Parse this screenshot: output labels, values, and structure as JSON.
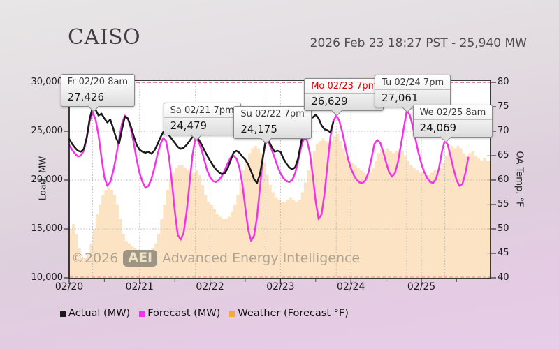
{
  "header": {
    "title": "CAISO",
    "subtitle": "2026 Feb 23 18:27 PST - 25,940 MW"
  },
  "watermark": {
    "copyright": "©2026",
    "badge": "AEI",
    "name": "Advanced Energy Intelligence"
  },
  "legend": [
    {
      "label": "Actual (MW)",
      "color": "#1a1a1a"
    },
    {
      "label": "Forecast (MW)",
      "color": "#f434e4"
    },
    {
      "label": "Weather (Forecast °F)",
      "color": "#f6a83b"
    }
  ],
  "axes": {
    "y_left": {
      "title": "Load, MW",
      "ticks": [
        "30,000",
        "25,000",
        "20,000",
        "15,000",
        "10,000"
      ],
      "min": 10000,
      "max": 30000
    },
    "y_right": {
      "title": "OA Temp, °F",
      "ticks": [
        "80",
        "75",
        "70",
        "65",
        "60",
        "55",
        "50",
        "45",
        "40"
      ],
      "min": 40,
      "max": 80
    },
    "x": {
      "ticks": [
        "02/20",
        "02/21",
        "02/22",
        "02/23",
        "02/24",
        "02/25"
      ]
    }
  },
  "callouts": [
    {
      "label": "Fr 02/20 8am",
      "value": "27,426",
      "hour": 8,
      "mw": 27426,
      "highlight": false
    },
    {
      "label": "Sa 02/21 7pm",
      "value": "24,479",
      "hour": 43,
      "mw": 24479,
      "highlight": false
    },
    {
      "label": "Su 02/22 7pm",
      "value": "24,175",
      "hour": 67,
      "mw": 24175,
      "highlight": false
    },
    {
      "label": "Mo 02/23 7pm",
      "value": "26,629",
      "hour": 91,
      "mw": 26629,
      "highlight": true
    },
    {
      "label": "Tu 02/24 7pm",
      "value": "27,061",
      "hour": 115,
      "mw": 27061,
      "highlight": false
    },
    {
      "label": "We 02/25 8am",
      "value": "24,069",
      "hour": 128,
      "mw": 24069,
      "highlight": false
    }
  ],
  "chart_data": {
    "type": "line",
    "title": "CAISO load: actual vs forecast with weather",
    "xlabel": "",
    "ylabel_left": "Load, MW",
    "ylabel_right": "OA Temp, °F",
    "x_unit": "hours since 02/20 00:00",
    "x_tick_days": [
      "02/20",
      "02/21",
      "02/22",
      "02/23",
      "02/24",
      "02/25"
    ],
    "ylim_left": [
      10000,
      30000
    ],
    "ylim_right": [
      40,
      80
    ],
    "grid": true,
    "legend_position": "bottom",
    "series": [
      {
        "name": "Actual (MW)",
        "axis": "left",
        "color": "#1a1a1a",
        "render": "line",
        "start_hour": 0,
        "values": [
          24200,
          23700,
          23300,
          23000,
          22900,
          23200,
          24400,
          26300,
          27426,
          27200,
          26600,
          26800,
          26300,
          25900,
          26200,
          25300,
          24300,
          23700,
          25200,
          26500,
          26300,
          25500,
          24500,
          23600,
          23100,
          22900,
          22800,
          22900,
          22700,
          23000,
          23600,
          24300,
          24900,
          25000,
          24600,
          24200,
          23800,
          23400,
          23200,
          23300,
          23600,
          24000,
          24400,
          24479,
          24200,
          23700,
          23100,
          22500,
          22000,
          21500,
          21100,
          20800,
          20600,
          20700,
          21200,
          22000,
          22800,
          23000,
          22800,
          22400,
          22100,
          21600,
          20900,
          20100,
          19700,
          20600,
          22300,
          24175,
          24000,
          23400,
          22900,
          23000,
          22900,
          22200,
          21700,
          21300,
          21100,
          21300,
          22200,
          23800,
          25400,
          26300,
          26500,
          26400,
          26700,
          26300,
          25600,
          25200,
          25100,
          24900,
          25940
        ]
      },
      {
        "name": "Forecast (MW)",
        "axis": "left",
        "color": "#f434e4",
        "render": "line",
        "start_hour": 0,
        "values": [
          23600,
          23100,
          22700,
          22400,
          22500,
          23000,
          24300,
          26000,
          26900,
          26200,
          24600,
          22300,
          20300,
          19400,
          19800,
          20900,
          22400,
          24200,
          25800,
          26600,
          26300,
          25300,
          23800,
          22100,
          20700,
          19800,
          19200,
          19400,
          20100,
          21200,
          22500,
          23600,
          24300,
          24000,
          22400,
          19800,
          16800,
          14400,
          13900,
          14600,
          16700,
          19600,
          22500,
          24300,
          24000,
          23200,
          22100,
          21000,
          20300,
          19900,
          19800,
          20000,
          20400,
          21000,
          21700,
          22300,
          22500,
          22200,
          21300,
          19600,
          17200,
          14900,
          13800,
          14300,
          16200,
          19200,
          22300,
          24100,
          23800,
          23100,
          22300,
          21400,
          20700,
          20200,
          19900,
          19800,
          20000,
          20700,
          21900,
          23300,
          24300,
          24100,
          22800,
          20500,
          17800,
          16000,
          16500,
          18600,
          21500,
          24400,
          26000,
          26629,
          26100,
          25000,
          23600,
          22200,
          21200,
          20500,
          20000,
          19750,
          19700,
          20000,
          20800,
          22200,
          23700,
          24100,
          23800,
          22900,
          21800,
          20800,
          20350,
          20700,
          21800,
          23500,
          25300,
          27061,
          26700,
          25600,
          24200,
          22800,
          21700,
          20800,
          20200,
          19800,
          19700,
          20100,
          21200,
          22900,
          24069,
          23600,
          22400,
          21100,
          20000,
          19400,
          19600,
          20700,
          22300
        ]
      },
      {
        "name": "Weather (Forecast °F)",
        "axis": "right",
        "color": "#f6a83b",
        "fill": "#fbe3c4",
        "render": "step-area",
        "start_hour": 0,
        "values": [
          50,
          51,
          49,
          46,
          44,
          44,
          45,
          47,
          50,
          53,
          55,
          57,
          58,
          58.5,
          58,
          57,
          55,
          52,
          49,
          47.5,
          47,
          46.5,
          46,
          45.5,
          45.5,
          45,
          45,
          45.5,
          46,
          47,
          49,
          52,
          55,
          58,
          60,
          61.5,
          62.5,
          63,
          63,
          62.5,
          62,
          61.5,
          61.5,
          62,
          61,
          59,
          57,
          55.5,
          55,
          54,
          53,
          52.5,
          52,
          52,
          52.5,
          53.5,
          55,
          57,
          59.5,
          62,
          64,
          65.5,
          66.5,
          67,
          66.5,
          65.5,
          63.5,
          61,
          59,
          57.5,
          56.5,
          56,
          55.5,
          55.5,
          56,
          56.5,
          56,
          55.5,
          56,
          57.5,
          59.5,
          62,
          64,
          66,
          67.5,
          68,
          68.5,
          68,
          67.5,
          68,
          69,
          69.5,
          68,
          66.5,
          65,
          64,
          63.5,
          63,
          62.5,
          62,
          61.5,
          61,
          61.5,
          62.5,
          64,
          65.5,
          66.5,
          66,
          66.5,
          66,
          65.5,
          66,
          66.5,
          66,
          65,
          64,
          63,
          62.5,
          62,
          61.5,
          61.5,
          61,
          61,
          61.5,
          62,
          62,
          62.5,
          63.5,
          65,
          66.5,
          67,
          66.5,
          67,
          66.5,
          65.5,
          65,
          65.5,
          66,
          65,
          64.5,
          64,
          64.5,
          64,
          64
        ]
      }
    ]
  },
  "colors": {
    "plot_bg": "#ffffff",
    "plot_border": "#1a1a1a",
    "grid_dotted": "#b5b5b5",
    "extreme_line": "#e2849c",
    "right_tick_pink": "#f2a9c4",
    "callout_red": "#e00000"
  }
}
